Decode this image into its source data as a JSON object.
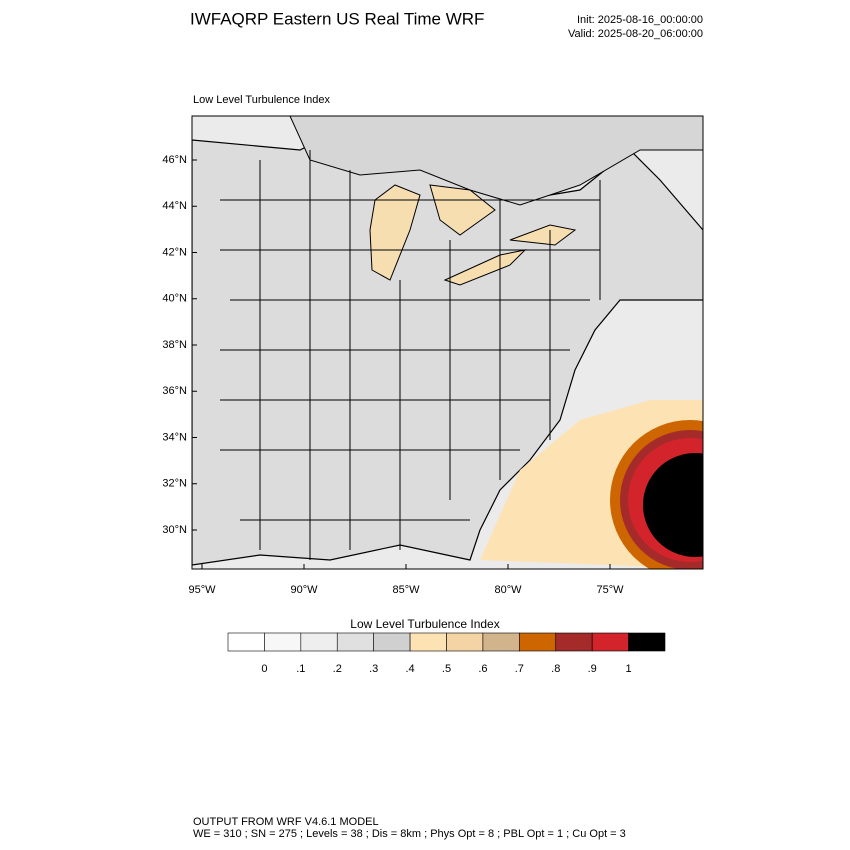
{
  "header": {
    "title": "IWFAQRP Eastern US Real Time WRF",
    "init": "Init: 2025-08-16_00:00:00",
    "valid": "Valid: 2025-08-20_06:00:00"
  },
  "map": {
    "label": "Low Level Turbulence Index",
    "lat_labels": [
      "46°N",
      "44°N",
      "42°N",
      "40°N",
      "38°N",
      "36°N",
      "34°N",
      "32°N",
      "30°N"
    ],
    "lon_labels": [
      "95°W",
      "90°W",
      "85°W",
      "80°W",
      "75°W"
    ]
  },
  "colorbar": {
    "title": "Low Level Turbulence Index",
    "colors": [
      "#ffffff",
      "#f7f7f7",
      "#eeeeee",
      "#e0e0e0",
      "#d0d0d0",
      "#fde3b4",
      "#f4d4a4",
      "#d2b48c",
      "#cd6600",
      "#a52a2a",
      "#d3242b",
      "#000000"
    ],
    "labels": [
      "0",
      ".1",
      ".2",
      ".3",
      ".4",
      ".5",
      ".6",
      ".7",
      ".8",
      ".9",
      "1"
    ]
  },
  "footer": {
    "line1": "OUTPUT FROM WRF V4.6.1 MODEL",
    "line2": "WE = 310 ; SN = 275 ; Levels = 38 ; Dis = 8km ; Phys Opt = 8 ; PBL Opt = 1 ; Cu Opt = 3"
  }
}
